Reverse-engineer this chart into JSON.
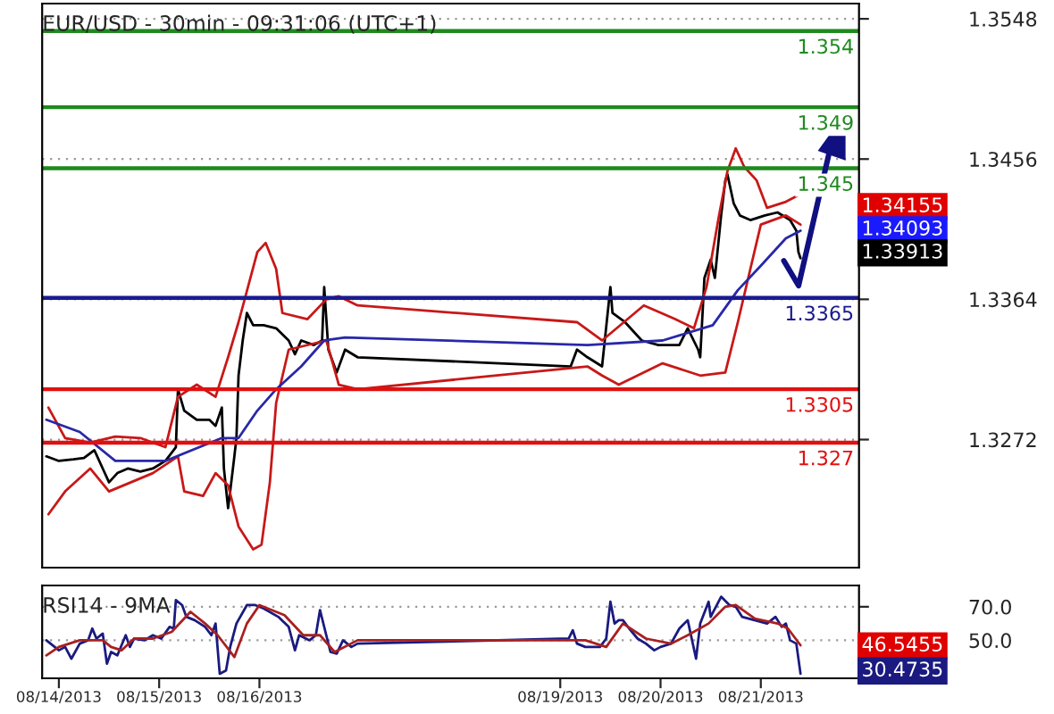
{
  "chart_data": [
    {
      "type": "line",
      "title": "EUR/USD - 30min - 09:31:06 (UTC+1)",
      "xlim": [
        "2013-08-13T20:00",
        "2013-08-21T23:30"
      ],
      "ylim": [
        1.3188,
        1.3558
      ],
      "yticks": [
        1.3548,
        1.3456,
        1.3364,
        1.3272
      ],
      "tick_labels": "y",
      "grid": "y",
      "marker": "none",
      "line_style": "solid",
      "series": [
        {
          "color": "#000000",
          "x": [
            "2013-08-13T21:00",
            "2013-08-14T00:00",
            "2013-08-14T03:30",
            "2013-08-14T06:00",
            "2013-08-14T08:30",
            "2013-08-14T10:30",
            "2013-08-14T12:00",
            "2013-08-14T14:00",
            "2013-08-14T16:30",
            "2013-08-14T19:30",
            "2013-08-14T22:30",
            "2013-08-15T01:30",
            "2013-08-15T04:00",
            "2013-08-15T04:30",
            "2013-08-15T06:00",
            "2013-08-15T09:00",
            "2013-08-15T12:00",
            "2013-08-15T13:30",
            "2013-08-15T15:00",
            "2013-08-15T15:30",
            "2013-08-15T16:30",
            "2013-08-15T17:00",
            "2013-08-15T18:00",
            "2013-08-15T18:30",
            "2013-08-15T19:00",
            "2013-08-15T20:00",
            "2013-08-15T21:00",
            "2013-08-15T22:30",
            "2013-08-16T01:00",
            "2013-08-16T04:00",
            "2013-08-16T07:00",
            "2013-08-16T08:30",
            "2013-08-16T10:00",
            "2013-08-16T13:00",
            "2013-08-16T15:00",
            "2013-08-16T15:30",
            "2013-08-16T16:30",
            "2013-08-16T18:30",
            "2013-08-16T20:30",
            "2013-08-16T23:30",
            "2013-08-19T02:30",
            "2013-08-19T04:00",
            "2013-08-19T06:30",
            "2013-08-19T10:00",
            "2013-08-19T12:00",
            "2013-08-19T12:30",
            "2013-08-19T15:30",
            "2013-08-19T19:30",
            "2013-08-19T23:30",
            "2013-08-20T04:30",
            "2013-08-20T06:30",
            "2013-08-20T09:00",
            "2013-08-20T09:30",
            "2013-08-20T10:30",
            "2013-08-20T12:00",
            "2013-08-20T13:00",
            "2013-08-20T14:30",
            "2013-08-20T15:30",
            "2013-08-20T16:00",
            "2013-08-20T17:30",
            "2013-08-20T19:00",
            "2013-08-20T21:30",
            "2013-08-21T01:00",
            "2013-08-21T04:00",
            "2013-08-21T07:00",
            "2013-08-21T08:30",
            "2013-08-21T09:00",
            "2013-08-21T09:30"
          ],
          "values": [
            1.3261,
            1.3258,
            1.3259,
            1.326,
            1.3265,
            1.3253,
            1.3244,
            1.325,
            1.3253,
            1.3251,
            1.3253,
            1.3258,
            1.3267,
            1.3305,
            1.3291,
            1.3285,
            1.3285,
            1.3281,
            1.3293,
            1.3253,
            1.3227,
            1.3238,
            1.3261,
            1.3273,
            1.3314,
            1.3337,
            1.3355,
            1.3347,
            1.3347,
            1.3345,
            1.3337,
            1.3328,
            1.3337,
            1.3334,
            1.3337,
            1.3372,
            1.3331,
            1.3316,
            1.3331,
            1.3326,
            1.332,
            1.3331,
            1.3326,
            1.332,
            1.3372,
            1.3355,
            1.3349,
            1.3337,
            1.3334,
            1.3334,
            1.3345,
            1.3331,
            1.3326,
            1.3378,
            1.339,
            1.3378,
            1.3419,
            1.3442,
            1.3446,
            1.3427,
            1.3419,
            1.3416,
            1.3419,
            1.3421,
            1.3416,
            1.3409,
            1.3395,
            1.3391
          ]
        },
        {
          "color": "#c81818",
          "x": [
            "2013-08-13T21:30",
            "2013-08-14T01:30",
            "2013-08-14T07:30",
            "2013-08-14T13:30",
            "2013-08-14T19:30",
            "2013-08-15T01:30",
            "2013-08-15T04:30",
            "2013-08-15T09:00",
            "2013-08-15T13:30",
            "2013-08-15T16:30",
            "2013-08-15T19:00",
            "2013-08-15T23:30",
            "2013-08-16T01:30",
            "2013-08-16T04:00",
            "2013-08-16T05:30",
            "2013-08-16T11:30",
            "2013-08-16T16:00",
            "2013-08-16T19:00",
            "2013-08-16T23:30",
            "2013-08-19T04:00",
            "2013-08-19T10:00",
            "2013-08-19T20:00",
            "2013-08-20T03:30",
            "2013-08-20T08:00",
            "2013-08-20T11:00",
            "2013-08-20T14:00",
            "2013-08-20T16:00",
            "2013-08-20T18:00",
            "2013-08-20T20:00",
            "2013-08-20T23:00",
            "2013-08-21T01:30",
            "2013-08-21T06:00",
            "2013-08-21T09:30"
          ],
          "values": [
            1.3293,
            1.3273,
            1.327,
            1.3274,
            1.3273,
            1.3267,
            1.33,
            1.3308,
            1.33,
            1.3326,
            1.3349,
            1.3395,
            1.3401,
            1.3384,
            1.3355,
            1.3351,
            1.3364,
            1.3366,
            1.336,
            1.3349,
            1.3337,
            1.336,
            1.3351,
            1.3345,
            1.3372,
            1.3419,
            1.3448,
            1.3463,
            1.3451,
            1.3442,
            1.3424,
            1.3428,
            1.3433
          ]
        },
        {
          "color": "#c81818",
          "x": [
            "2013-08-13T21:30",
            "2013-08-14T01:30",
            "2013-08-14T07:30",
            "2013-08-14T12:00",
            "2013-08-14T22:30",
            "2013-08-15T04:30",
            "2013-08-15T06:00",
            "2013-08-15T10:30",
            "2013-08-15T13:30",
            "2013-08-15T16:30",
            "2013-08-15T19:00",
            "2013-08-15T22:30",
            "2013-08-16T00:30",
            "2013-08-16T02:30",
            "2013-08-16T04:00",
            "2013-08-16T07:00",
            "2013-08-16T16:00",
            "2013-08-16T19:00",
            "2013-08-16T23:30",
            "2013-08-19T06:30",
            "2013-08-19T10:00",
            "2013-08-19T14:00",
            "2013-08-20T00:30",
            "2013-08-20T09:30",
            "2013-08-20T15:30",
            "2013-08-20T18:30",
            "2013-08-20T21:30",
            "2013-08-21T00:00",
            "2013-08-21T06:00",
            "2013-08-21T09:30"
          ],
          "values": [
            1.3223,
            1.3238,
            1.3253,
            1.3238,
            1.325,
            1.3261,
            1.3238,
            1.3235,
            1.325,
            1.3242,
            1.3215,
            1.32,
            1.3203,
            1.3244,
            1.3296,
            1.3331,
            1.3337,
            1.3308,
            1.3305,
            1.332,
            1.3314,
            1.3308,
            1.3322,
            1.3314,
            1.3316,
            1.3349,
            1.3384,
            1.3413,
            1.3419,
            1.3413
          ]
        },
        {
          "color": "#2828a8",
          "x": [
            "2013-08-13T21:00",
            "2013-08-14T05:00",
            "2013-08-14T13:30",
            "2013-08-15T01:30",
            "2013-08-15T15:00",
            "2013-08-15T19:00",
            "2013-08-15T23:30",
            "2013-08-16T04:00",
            "2013-08-16T10:00",
            "2013-08-16T15:30",
            "2013-08-16T20:30",
            "2013-08-19T06:30",
            "2013-08-20T00:30",
            "2013-08-20T12:30",
            "2013-08-20T18:30",
            "2013-08-21T00:00",
            "2013-08-21T06:00",
            "2013-08-21T09:30"
          ],
          "values": [
            1.3285,
            1.3277,
            1.3258,
            1.3258,
            1.3273,
            1.3273,
            1.3291,
            1.3305,
            1.332,
            1.3337,
            1.3339,
            1.3334,
            1.3337,
            1.3347,
            1.337,
            1.3386,
            1.3404,
            1.3409
          ]
        }
      ],
      "ref_lines": [
        {
          "axis": "y",
          "value": 1.354,
          "label": "1.354",
          "color": "#1e8a1e"
        },
        {
          "axis": "y",
          "value": 1.349,
          "label": "1.349",
          "color": "#1e8a1e"
        },
        {
          "axis": "y",
          "value": 1.345,
          "label": "1.345",
          "color": "#1e8a1e"
        },
        {
          "axis": "y",
          "value": 1.3365,
          "label": "1.3365",
          "color": "#1a1a90"
        },
        {
          "axis": "y",
          "value": 1.3305,
          "label": "1.3305",
          "color": "#e01010"
        },
        {
          "axis": "y",
          "value": 1.327,
          "label": "1.327",
          "color": "#e01010"
        }
      ],
      "annotations": [
        "1.34155",
        "1.34093",
        "1.33913"
      ]
    },
    {
      "type": "line",
      "title": "RSI14 - 9MA",
      "xlim": [
        "2013-08-13T20:00",
        "2013-08-21T23:30"
      ],
      "ylim": [
        27.3,
        82.7
      ],
      "yticks": [
        {
          "value": 70,
          "label": "70.0"
        },
        {
          "value": 50,
          "label": "50.0"
        }
      ],
      "grid": "y",
      "marker": "none",
      "line_style": "solid",
      "xticks": [
        {
          "value": "2013-08-14",
          "label": "08/14/2013"
        },
        {
          "value": "2013-08-15",
          "label": "08/15/2013"
        },
        {
          "value": "2013-08-16",
          "label": "08/16/2013"
        },
        {
          "value": "2013-08-19",
          "label": "08/19/2013"
        },
        {
          "value": "2013-08-20",
          "label": "08/20/2013"
        },
        {
          "value": "2013-08-21",
          "label": "08/21/2013"
        }
      ],
      "series": [
        {
          "color": "#1a1a80",
          "x": [
            "2013-08-13T21:00",
            "2013-08-14T00:00",
            "2013-08-14T01:30",
            "2013-08-14T03:00",
            "2013-08-14T05:00",
            "2013-08-14T07:00",
            "2013-08-14T08:00",
            "2013-08-14T09:00",
            "2013-08-14T10:30",
            "2013-08-14T11:30",
            "2013-08-14T12:30",
            "2013-08-14T14:00",
            "2013-08-14T16:00",
            "2013-08-14T17:00",
            "2013-08-14T18:00",
            "2013-08-14T20:30",
            "2013-08-14T22:30",
            "2013-08-15T00:30",
            "2013-08-15T02:30",
            "2013-08-15T03:30",
            "2013-08-15T04:00",
            "2013-08-15T05:30",
            "2013-08-15T06:30",
            "2013-08-15T08:30",
            "2013-08-15T11:00",
            "2013-08-15T12:30",
            "2013-08-15T13:30",
            "2013-08-15T14:30",
            "2013-08-15T16:00",
            "2013-08-15T17:00",
            "2013-08-15T18:30",
            "2013-08-15T21:00",
            "2013-08-15T23:00",
            "2013-08-16T01:00",
            "2013-08-16T04:30",
            "2013-08-16T07:00",
            "2013-08-16T08:30",
            "2013-08-16T09:30",
            "2013-08-16T12:00",
            "2013-08-16T13:30",
            "2013-08-16T14:30",
            "2013-08-16T16:00",
            "2013-08-16T17:00",
            "2013-08-16T18:30",
            "2013-08-16T20:00",
            "2013-08-16T22:00",
            "2013-08-16T23:30",
            "2013-08-19T02:00",
            "2013-08-19T03:00",
            "2013-08-19T04:00",
            "2013-08-19T06:00",
            "2013-08-19T09:30",
            "2013-08-19T11:00",
            "2013-08-19T12:00",
            "2013-08-19T13:00",
            "2013-08-19T14:00",
            "2013-08-19T15:00",
            "2013-08-19T16:30",
            "2013-08-19T18:30",
            "2013-08-19T20:30",
            "2013-08-19T22:30",
            "2013-08-20T00:00",
            "2013-08-20T02:30",
            "2013-08-20T04:30",
            "2013-08-20T06:30",
            "2013-08-20T08:30",
            "2013-08-20T09:30",
            "2013-08-20T11:30",
            "2013-08-20T12:00",
            "2013-08-20T14:30",
            "2013-08-20T16:30",
            "2013-08-20T18:00",
            "2013-08-20T19:30",
            "2013-08-20T22:30",
            "2013-08-21T01:30",
            "2013-08-21T03:30",
            "2013-08-21T05:00",
            "2013-08-21T06:00",
            "2013-08-21T07:00",
            "2013-08-21T08:30",
            "2013-08-21T09:30"
          ],
          "values": [
            50,
            44,
            46,
            39,
            48,
            50,
            57,
            51,
            54,
            36,
            43,
            41,
            53,
            46,
            51,
            50,
            53,
            51,
            58,
            57,
            74,
            71,
            64,
            62,
            58,
            53,
            60,
            30,
            32,
            46,
            60,
            71,
            71,
            69,
            64,
            58,
            44,
            53,
            50,
            53,
            68,
            53,
            43,
            42,
            50,
            46,
            48,
            51,
            56,
            48,
            46,
            46,
            51,
            73,
            60,
            62,
            62,
            57,
            51,
            48,
            44,
            46,
            48,
            57,
            62,
            39,
            60,
            73,
            64,
            76,
            71,
            70,
            64,
            62,
            60,
            64,
            58,
            60,
            50,
            48,
            30
          ]
        },
        {
          "color": "#a82020",
          "x": [
            "2013-08-13T21:00",
            "2013-08-14T00:00",
            "2013-08-14T05:00",
            "2013-08-14T10:30",
            "2013-08-14T12:30",
            "2013-08-14T15:00",
            "2013-08-14T18:00",
            "2013-08-14T22:30",
            "2013-08-15T03:00",
            "2013-08-15T07:30",
            "2013-08-15T11:00",
            "2013-08-15T14:00",
            "2013-08-15T18:00",
            "2013-08-15T21:00",
            "2013-08-16T00:00",
            "2013-08-16T06:00",
            "2013-08-16T10:30",
            "2013-08-16T14:30",
            "2013-08-16T18:00",
            "2013-08-16T23:30",
            "2013-08-19T06:00",
            "2013-08-19T11:00",
            "2013-08-19T15:00",
            "2013-08-19T20:30",
            "2013-08-20T02:30",
            "2013-08-20T06:30",
            "2013-08-20T11:30",
            "2013-08-20T15:30",
            "2013-08-20T18:00",
            "2013-08-20T22:30",
            "2013-08-21T04:00",
            "2013-08-21T06:30",
            "2013-08-21T09:30"
          ],
          "values": [
            41,
            46,
            50,
            50,
            46,
            44,
            51,
            51,
            55,
            67,
            60,
            53,
            40,
            60,
            71,
            65,
            53,
            53,
            43,
            50,
            50,
            46,
            60,
            51,
            48,
            53,
            60,
            70,
            71,
            63,
            60,
            57,
            47
          ]
        }
      ],
      "annotations": [
        "46.5455",
        "30.4735"
      ]
    }
  ]
}
